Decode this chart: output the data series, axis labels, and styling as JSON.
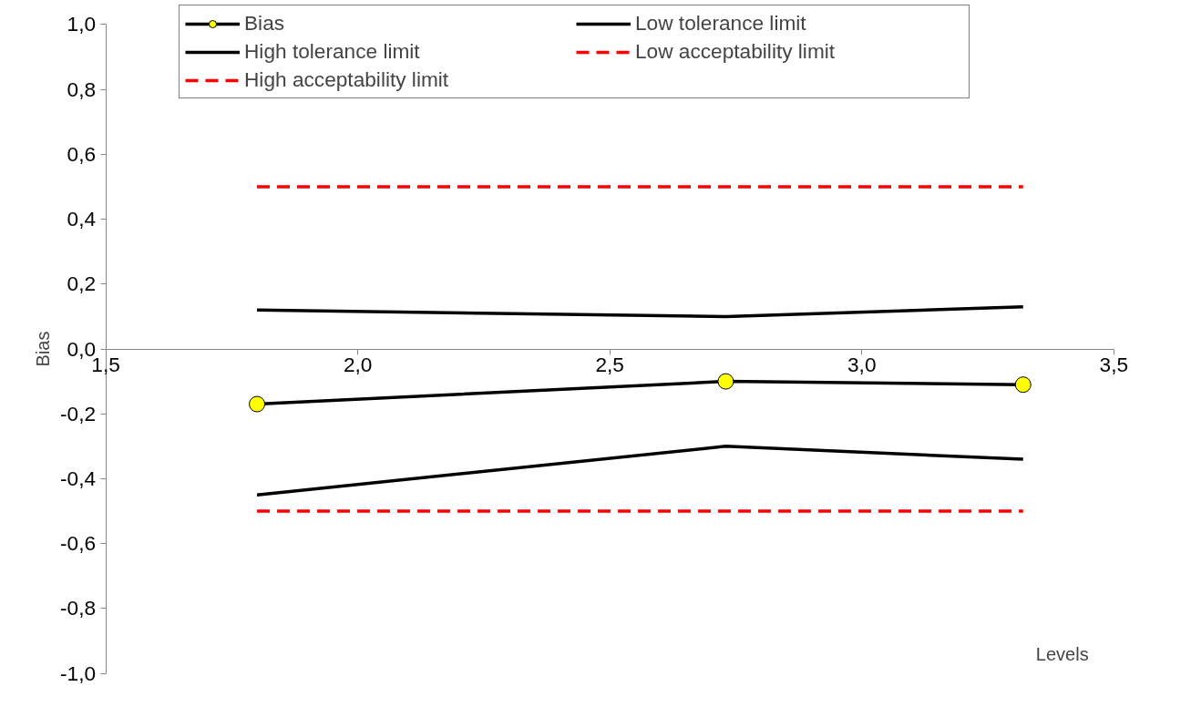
{
  "chart_data": {
    "type": "line",
    "xlabel": "Levels",
    "ylabel": "Bias",
    "xlim": [
      1.5,
      3.5
    ],
    "ylim": [
      -1.0,
      1.0
    ],
    "xticks": [
      {
        "value": 1.5,
        "label": "1,5"
      },
      {
        "value": 2.0,
        "label": "2,0"
      },
      {
        "value": 2.5,
        "label": "2,5"
      },
      {
        "value": 3.0,
        "label": "3,0"
      },
      {
        "value": 3.5,
        "label": "3,5"
      }
    ],
    "yticks": [
      {
        "value": -1.0,
        "label": "-1,0"
      },
      {
        "value": -0.8,
        "label": "-0,8"
      },
      {
        "value": -0.6,
        "label": "-0,6"
      },
      {
        "value": -0.4,
        "label": "-0,4"
      },
      {
        "value": -0.2,
        "label": "-0,2"
      },
      {
        "value": 0.0,
        "label": "0,0"
      },
      {
        "value": 0.2,
        "label": "0,2"
      },
      {
        "value": 0.4,
        "label": "0,4"
      },
      {
        "value": 0.6,
        "label": "0,6"
      },
      {
        "value": 0.8,
        "label": "0,8"
      },
      {
        "value": 1.0,
        "label": "1,0"
      }
    ],
    "x": [
      1.8,
      2.73,
      3.32
    ],
    "grid": false,
    "legend": "top",
    "series": [
      {
        "name": "Bias",
        "color": "#000000",
        "colors": [
          "#ffff00",
          "#ffff00",
          "#ffff00"
        ],
        "marker": "circle",
        "line_style": "solid",
        "values": [
          -0.17,
          -0.1,
          -0.11
        ]
      },
      {
        "name": "Low tolerance limit",
        "color": "#000000",
        "marker": "none",
        "line_style": "solid",
        "values": [
          -0.45,
          -0.3,
          -0.34
        ]
      },
      {
        "name": "High tolerance limit",
        "color": "#000000",
        "marker": "none",
        "line_style": "solid",
        "values": [
          0.12,
          0.1,
          0.13
        ]
      },
      {
        "name": "Low acceptability limit",
        "color": "#ff0000",
        "marker": "none",
        "line_style": "dashed",
        "values": [
          -0.5,
          -0.5,
          -0.5
        ]
      },
      {
        "name": "High acceptability limit",
        "color": "#ff0000",
        "marker": "none",
        "line_style": "dashed",
        "values": [
          0.5,
          0.5,
          0.5
        ]
      }
    ]
  }
}
